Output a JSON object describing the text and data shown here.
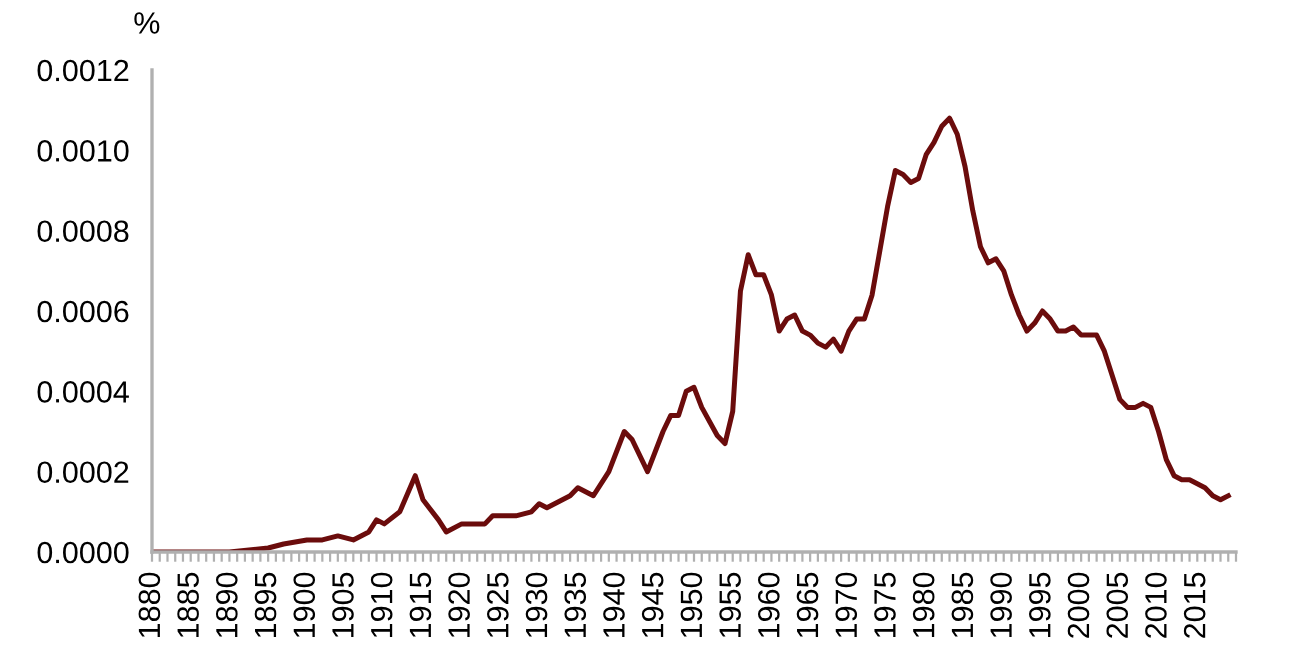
{
  "chart_data": {
    "type": "line",
    "ylabel": "%",
    "x": [
      1880,
      1885,
      1890,
      1895,
      1897,
      1900,
      1902,
      1904,
      1906,
      1908,
      1909,
      1910,
      1912,
      1914,
      1915,
      1917,
      1918,
      1920,
      1922,
      1923,
      1924,
      1927,
      1929,
      1930,
      1931,
      1934,
      1935,
      1937,
      1939,
      1941,
      1942,
      1944,
      1946,
      1947,
      1948,
      1949,
      1950,
      1951,
      1953,
      1954,
      1955,
      1956,
      1957,
      1958,
      1959,
      1960,
      1961,
      1962,
      1963,
      1964,
      1965,
      1966,
      1967,
      1968,
      1969,
      1970,
      1971,
      1972,
      1973,
      1974,
      1975,
      1976,
      1977,
      1978,
      1979,
      1980,
      1981,
      1982,
      1983,
      1984,
      1985,
      1986,
      1987,
      1988,
      1989,
      1990,
      1991,
      1992,
      1993,
      1994,
      1995,
      1996,
      1997,
      1998,
      1999,
      2000,
      2001,
      2002,
      2003,
      2004,
      2005,
      2006,
      2007,
      2008,
      2009,
      2010,
      2011,
      2012,
      2013,
      2014,
      2015,
      2016,
      2017,
      2018,
      2019
    ],
    "series": [
      {
        "color": "#6b0c0c",
        "values": [
          0,
          0,
          0,
          1e-05,
          2e-05,
          3e-05,
          3e-05,
          4e-05,
          3e-05,
          5e-05,
          8e-05,
          7e-05,
          0.0001,
          0.00019,
          0.00013,
          8e-05,
          5e-05,
          7e-05,
          7e-05,
          7e-05,
          9e-05,
          9e-05,
          0.0001,
          0.00012,
          0.00011,
          0.00014,
          0.00016,
          0.00014,
          0.0002,
          0.0003,
          0.00028,
          0.0002,
          0.0003,
          0.00034,
          0.00034,
          0.0004,
          0.00041,
          0.00036,
          0.00029,
          0.00027,
          0.00035,
          0.00065,
          0.00074,
          0.00069,
          0.00069,
          0.00064,
          0.00055,
          0.00058,
          0.00059,
          0.00055,
          0.00054,
          0.00052,
          0.00051,
          0.00053,
          0.0005,
          0.00055,
          0.00058,
          0.00058,
          0.00064,
          0.00075,
          0.00086,
          0.00095,
          0.00094,
          0.00092,
          0.00093,
          0.00099,
          0.00102,
          0.00106,
          0.00108,
          0.00104,
          0.00096,
          0.00085,
          0.00076,
          0.00072,
          0.00073,
          0.0007,
          0.00064,
          0.00059,
          0.00055,
          0.00057,
          0.0006,
          0.00058,
          0.00055,
          0.00055,
          0.00056,
          0.00054,
          0.00054,
          0.00054,
          0.0005,
          0.00044,
          0.00038,
          0.00036,
          0.00036,
          0.00037,
          0.00036,
          0.0003,
          0.00023,
          0.00019,
          0.00018,
          0.00018,
          0.00017,
          0.00016,
          0.00014,
          0.00013,
          0.00014
        ]
      }
    ],
    "xlim": [
      1880,
      2020
    ],
    "xticks": [
      1880,
      {
        "value": 1881,
        "label": null
      },
      {
        "value": 1882,
        "label": null
      },
      {
        "value": 1883,
        "label": null
      },
      {
        "value": 1884,
        "label": null
      },
      1885,
      {
        "value": 1886,
        "label": null
      },
      {
        "value": 1887,
        "label": null
      },
      {
        "value": 1888,
        "label": null
      },
      {
        "value": 1889,
        "label": null
      },
      1890,
      {
        "value": 1891,
        "label": null
      },
      {
        "value": 1892,
        "label": null
      },
      {
        "value": 1893,
        "label": null
      },
      {
        "value": 1894,
        "label": null
      },
      1895,
      {
        "value": 1896,
        "label": null
      },
      {
        "value": 1897,
        "label": null
      },
      {
        "value": 1898,
        "label": null
      },
      {
        "value": 1899,
        "label": null
      },
      1900,
      {
        "value": 1901,
        "label": null
      },
      {
        "value": 1902,
        "label": null
      },
      {
        "value": 1903,
        "label": null
      },
      {
        "value": 1904,
        "label": null
      },
      1905,
      {
        "value": 1906,
        "label": null
      },
      {
        "value": 1907,
        "label": null
      },
      {
        "value": 1908,
        "label": null
      },
      {
        "value": 1909,
        "label": null
      },
      1910,
      {
        "value": 1911,
        "label": null
      },
      {
        "value": 1912,
        "label": null
      },
      {
        "value": 1913,
        "label": null
      },
      {
        "value": 1914,
        "label": null
      },
      1915,
      {
        "value": 1916,
        "label": null
      },
      {
        "value": 1917,
        "label": null
      },
      {
        "value": 1918,
        "label": null
      },
      {
        "value": 1919,
        "label": null
      },
      1920,
      {
        "value": 1921,
        "label": null
      },
      {
        "value": 1922,
        "label": null
      },
      {
        "value": 1923,
        "label": null
      },
      {
        "value": 1924,
        "label": null
      },
      1925,
      {
        "value": 1926,
        "label": null
      },
      {
        "value": 1927,
        "label": null
      },
      {
        "value": 1928,
        "label": null
      },
      {
        "value": 1929,
        "label": null
      },
      1930,
      {
        "value": 1931,
        "label": null
      },
      {
        "value": 1932,
        "label": null
      },
      {
        "value": 1933,
        "label": null
      },
      {
        "value": 1934,
        "label": null
      },
      1935,
      {
        "value": 1936,
        "label": null
      },
      {
        "value": 1937,
        "label": null
      },
      {
        "value": 1938,
        "label": null
      },
      {
        "value": 1939,
        "label": null
      },
      1940,
      {
        "value": 1941,
        "label": null
      },
      {
        "value": 1942,
        "label": null
      },
      {
        "value": 1943,
        "label": null
      },
      {
        "value": 1944,
        "label": null
      },
      1945,
      {
        "value": 1946,
        "label": null
      },
      {
        "value": 1947,
        "label": null
      },
      {
        "value": 1948,
        "label": null
      },
      {
        "value": 1949,
        "label": null
      },
      1950,
      {
        "value": 1951,
        "label": null
      },
      {
        "value": 1952,
        "label": null
      },
      {
        "value": 1953,
        "label": null
      },
      {
        "value": 1954,
        "label": null
      },
      1955,
      {
        "value": 1956,
        "label": null
      },
      {
        "value": 1957,
        "label": null
      },
      {
        "value": 1958,
        "label": null
      },
      {
        "value": 1959,
        "label": null
      },
      1960,
      {
        "value": 1961,
        "label": null
      },
      {
        "value": 1962,
        "label": null
      },
      {
        "value": 1963,
        "label": null
      },
      {
        "value": 1964,
        "label": null
      },
      1965,
      {
        "value": 1966,
        "label": null
      },
      {
        "value": 1967,
        "label": null
      },
      {
        "value": 1968,
        "label": null
      },
      {
        "value": 1969,
        "label": null
      },
      1970,
      {
        "value": 1971,
        "label": null
      },
      {
        "value": 1972,
        "label": null
      },
      {
        "value": 1973,
        "label": null
      },
      {
        "value": 1974,
        "label": null
      },
      1975,
      {
        "value": 1976,
        "label": null
      },
      {
        "value": 1977,
        "label": null
      },
      {
        "value": 1978,
        "label": null
      },
      {
        "value": 1979,
        "label": null
      },
      1980,
      {
        "value": 1981,
        "label": null
      },
      {
        "value": 1982,
        "label": null
      },
      {
        "value": 1983,
        "label": null
      },
      {
        "value": 1984,
        "label": null
      },
      1985,
      {
        "value": 1986,
        "label": null
      },
      {
        "value": 1987,
        "label": null
      },
      {
        "value": 1988,
        "label": null
      },
      {
        "value": 1989,
        "label": null
      },
      1990,
      {
        "value": 1991,
        "label": null
      },
      {
        "value": 1992,
        "label": null
      },
      {
        "value": 1993,
        "label": null
      },
      {
        "value": 1994,
        "label": null
      },
      1995,
      {
        "value": 1996,
        "label": null
      },
      {
        "value": 1997,
        "label": null
      },
      {
        "value": 1998,
        "label": null
      },
      {
        "value": 1999,
        "label": null
      },
      2000,
      {
        "value": 2001,
        "label": null
      },
      {
        "value": 2002,
        "label": null
      },
      {
        "value": 2003,
        "label": null
      },
      {
        "value": 2004,
        "label": null
      },
      2005,
      {
        "value": 2006,
        "label": null
      },
      {
        "value": 2007,
        "label": null
      },
      {
        "value": 2008,
        "label": null
      },
      {
        "value": 2009,
        "label": null
      },
      2010,
      {
        "value": 2011,
        "label": null
      },
      {
        "value": 2012,
        "label": null
      },
      {
        "value": 2013,
        "label": null
      },
      {
        "value": 2014,
        "label": null
      },
      2015,
      {
        "value": 2016,
        "label": null
      },
      {
        "value": 2017,
        "label": null
      },
      {
        "value": 2018,
        "label": null
      },
      {
        "value": 2019,
        "label": null
      },
      {
        "value": 2020,
        "label": null
      }
    ],
    "ylim": [
      0,
      0.0012
    ],
    "yticks": [
      {
        "value": 0,
        "label": "0.0000"
      },
      {
        "value": 0.0002,
        "label": "0.0002"
      },
      {
        "value": 0.0004,
        "label": "0.0004"
      },
      {
        "value": 0.0006,
        "label": "0.0006"
      },
      {
        "value": 0.0008,
        "label": "0.0008"
      },
      {
        "value": 0.001,
        "label": "0.0010"
      },
      {
        "value": 0.0012,
        "label": "0.0012"
      }
    ],
    "grid": false,
    "marker": "none",
    "line_style": "solid"
  }
}
